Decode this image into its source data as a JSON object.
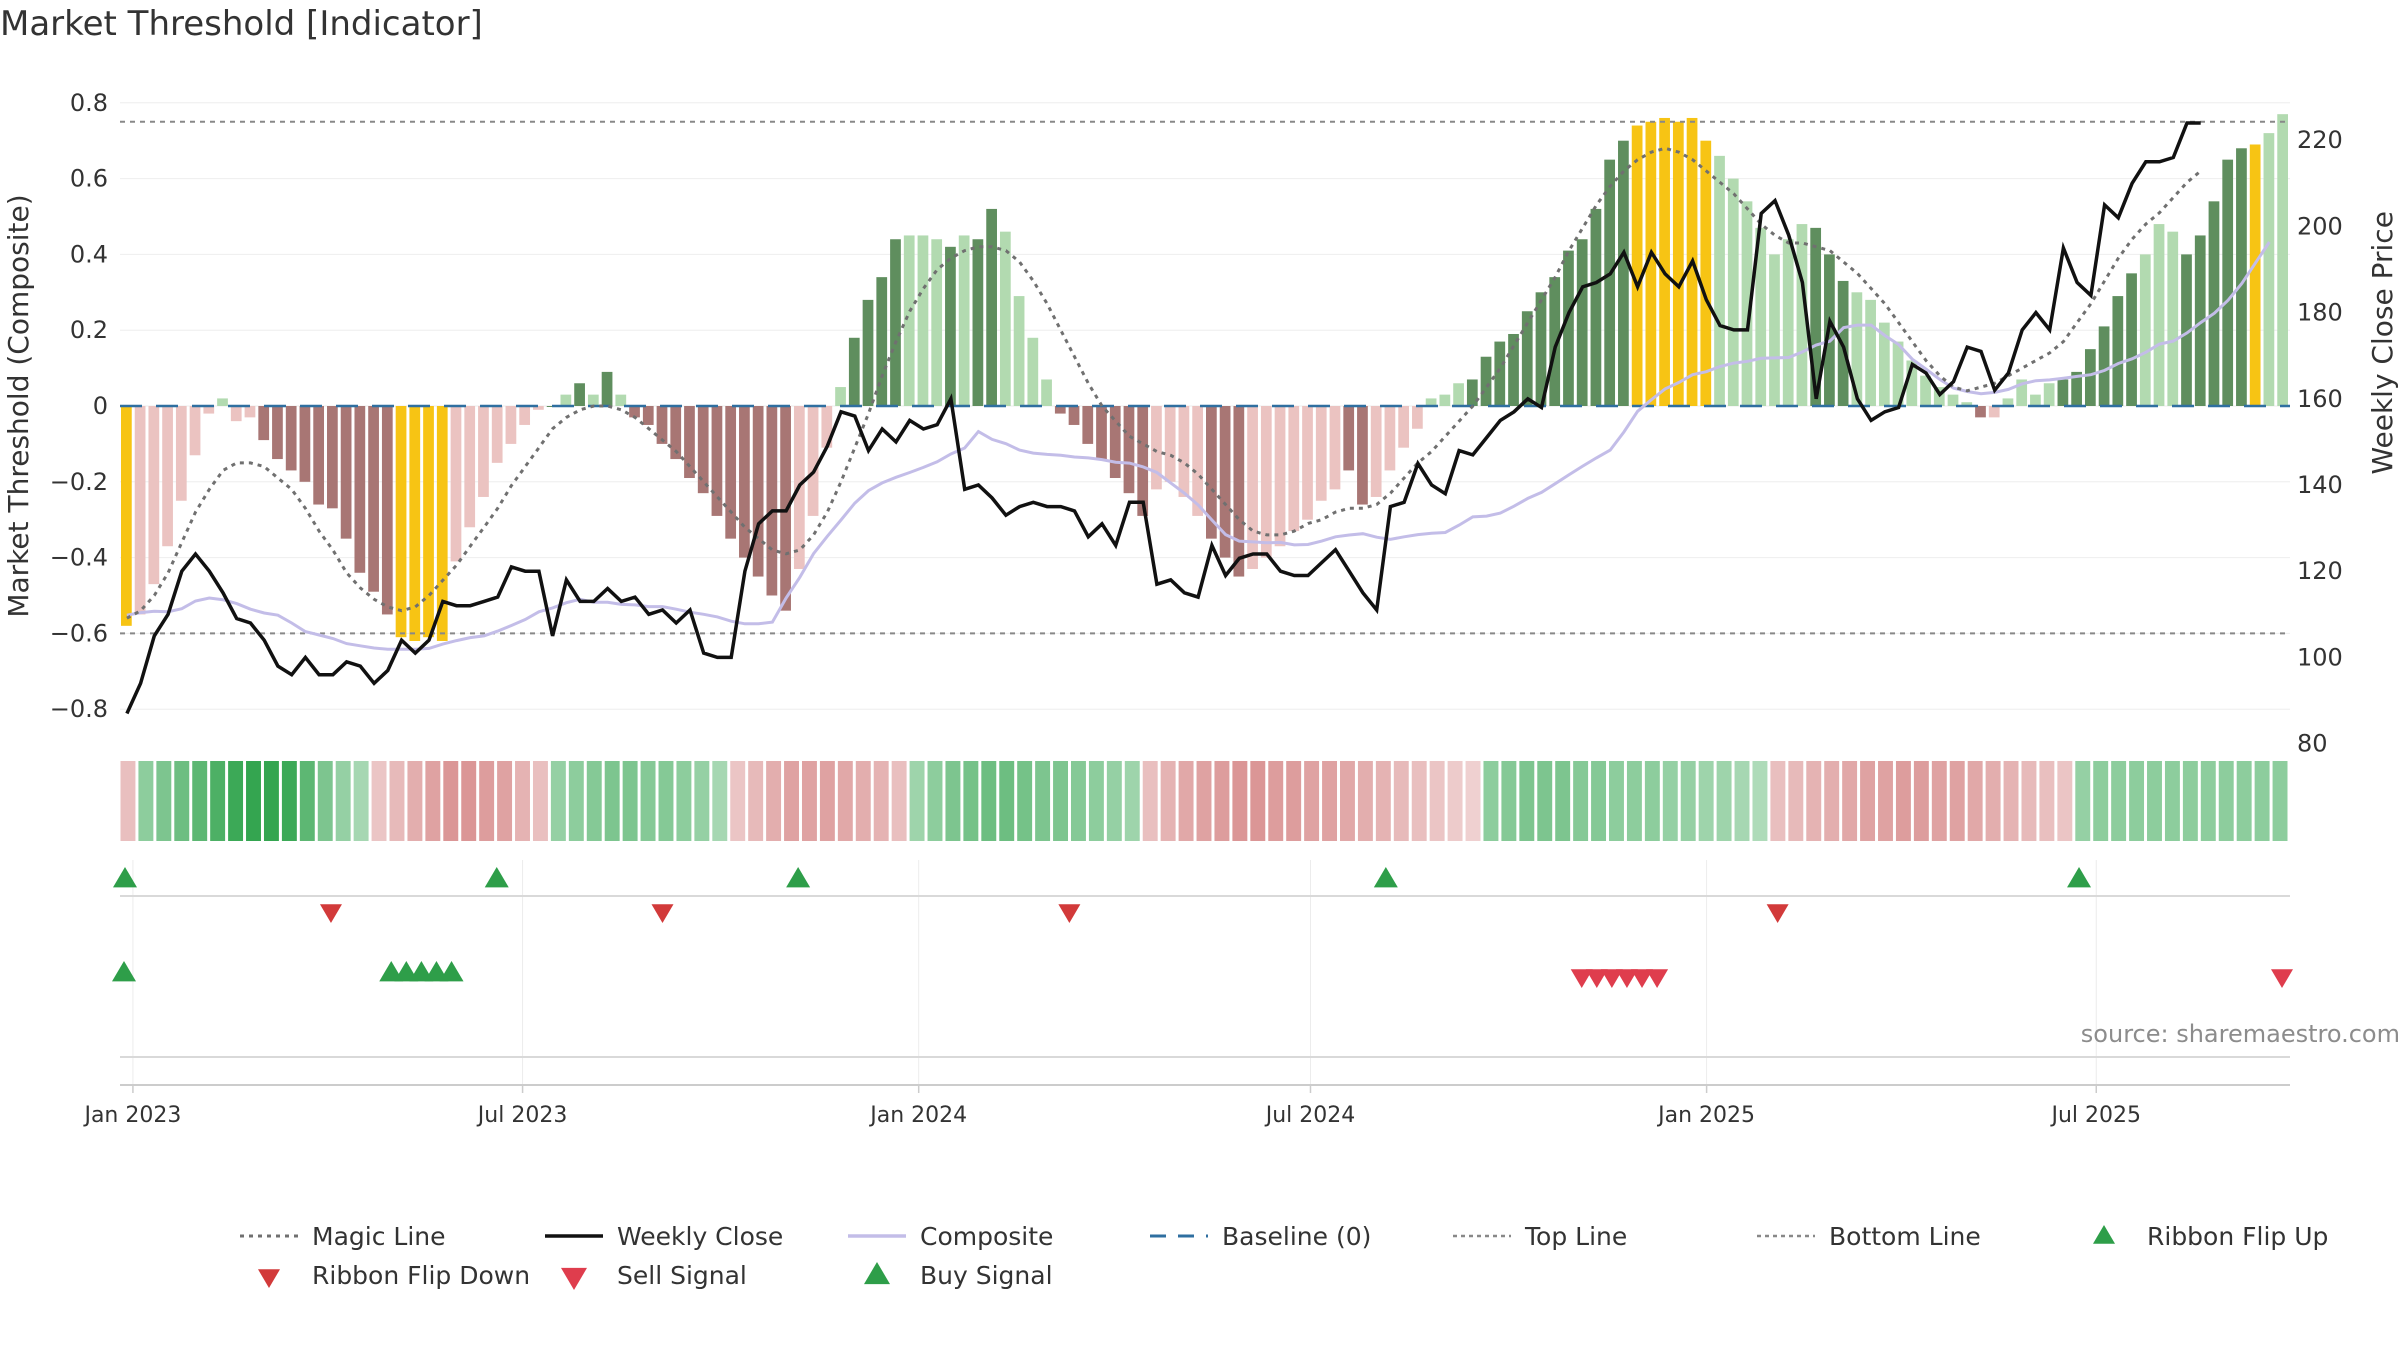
{
  "title": "Market Threshold [Indicator]",
  "source": "source: sharemaestro.com",
  "colors": {
    "magic_line": "#707070",
    "weekly_close": "#111111",
    "composite": "#c3bde8",
    "baseline": "#2f6fa0",
    "guide_lines": "#888888",
    "flip_up": "#2e9e49",
    "flip_down": "#d23a3a",
    "buy": "#2e9e49",
    "sell": "#df3d4d",
    "extreme": "#f7c414",
    "pos_strong": "#5f8e5e",
    "pos_weak": "#b2dab0",
    "neg_strong": "#a87674",
    "neg_weak": "#ebc3c1"
  },
  "chart_data": {
    "type": "bar",
    "title": "Market Threshold [Indicator]",
    "ylabel": "Market Threshold (Composite)",
    "y2label": "Weekly Close Price",
    "ylim": [
      -0.84,
      0.84
    ],
    "y2lim": [
      77,
      230
    ],
    "yticks": [
      0.8,
      0.6,
      0.4,
      0.2,
      0,
      -0.2,
      -0.4,
      -0.6,
      -0.8
    ],
    "yticklabels": [
      "0.8",
      "0.6",
      "0.4",
      "0.2",
      "0",
      "−0.2",
      "−0.4",
      "−0.6",
      "−0.8"
    ],
    "y2ticks": [
      220,
      200,
      180,
      160,
      140,
      120,
      100,
      80
    ],
    "y2ticklabels": [
      "220",
      "200",
      "180",
      "160",
      "140",
      "120",
      "100",
      "80"
    ],
    "x_start": "2022-12-26",
    "x_end": "2025-09-29",
    "xticks": [
      "2023-01-01",
      "2023-07-01",
      "2024-01-01",
      "2024-07-01",
      "2025-01-01",
      "2025-07-01"
    ],
    "xticklabels": [
      "Jan 2023",
      "Jul 2023",
      "Jan 2024",
      "Jul 2024",
      "Jan 2025",
      "Jul 2025"
    ],
    "top_line": 0.75,
    "bottom_line": -0.6,
    "baseline": 0,
    "composite": [
      -0.58,
      -0.55,
      -0.47,
      -0.37,
      -0.25,
      -0.13,
      -0.02,
      0.02,
      -0.04,
      -0.03,
      -0.09,
      -0.14,
      -0.17,
      -0.2,
      -0.26,
      -0.27,
      -0.35,
      -0.44,
      -0.49,
      -0.55,
      -0.61,
      -0.62,
      -0.61,
      -0.62,
      -0.41,
      -0.32,
      -0.24,
      -0.15,
      -0.1,
      -0.05,
      -0.01,
      0,
      0.03,
      0.06,
      0.03,
      0.09,
      0.03,
      -0.03,
      -0.05,
      -0.1,
      -0.14,
      -0.19,
      -0.23,
      -0.29,
      -0.35,
      -0.4,
      -0.45,
      -0.5,
      -0.54,
      -0.43,
      -0.29,
      -0.11,
      0.05,
      0.18,
      0.28,
      0.34,
      0.44,
      0.45,
      0.45,
      0.44,
      0.42,
      0.45,
      0.44,
      0.52,
      0.46,
      0.29,
      0.18,
      0.07,
      -0.02,
      -0.05,
      -0.1,
      -0.14,
      -0.19,
      -0.23,
      -0.29,
      -0.22,
      -0.2,
      -0.24,
      -0.29,
      -0.35,
      -0.4,
      -0.45,
      -0.43,
      -0.4,
      -0.37,
      -0.33,
      -0.3,
      -0.25,
      -0.22,
      -0.17,
      -0.26,
      -0.24,
      -0.17,
      -0.11,
      -0.06,
      0.02,
      0.03,
      0.06,
      0.07,
      0.13,
      0.17,
      0.19,
      0.25,
      0.3,
      0.34,
      0.41,
      0.44,
      0.52,
      0.65,
      0.7,
      0.74,
      0.75,
      0.76,
      0.75,
      0.76,
      0.7,
      0.66,
      0.6,
      0.54,
      0.47,
      0.4,
      0.44,
      0.48,
      0.47,
      0.4,
      0.33,
      0.3,
      0.28,
      0.22,
      0.17,
      0.12,
      0.08,
      0.05,
      0.03,
      0.01,
      -0.03,
      -0.03,
      0.02,
      0.07,
      0.03,
      0.06,
      0.07,
      0.09,
      0.15,
      0.21,
      0.29,
      0.35,
      0.4,
      0.48,
      0.46,
      0.4,
      0.45,
      0.54,
      0.65,
      0.68,
      0.69,
      0.72,
      0.77
    ],
    "intensity": [
      "e",
      "w",
      "w",
      "w",
      "w",
      "w",
      "w",
      "w",
      "w",
      "w",
      "s",
      "s",
      "s",
      "s",
      "s",
      "s",
      "s",
      "s",
      "s",
      "s",
      "e",
      "e",
      "e",
      "e",
      "w",
      "w",
      "w",
      "w",
      "w",
      "w",
      "w",
      "s",
      "w",
      "s",
      "w",
      "s",
      "w",
      "s",
      "s",
      "s",
      "s",
      "s",
      "s",
      "s",
      "s",
      "s",
      "s",
      "s",
      "s",
      "w",
      "w",
      "w",
      "w",
      "s",
      "s",
      "s",
      "s",
      "w",
      "w",
      "w",
      "s",
      "w",
      "s",
      "s",
      "w",
      "w",
      "w",
      "w",
      "s",
      "s",
      "s",
      "s",
      "s",
      "s",
      "s",
      "w",
      "w",
      "w",
      "w",
      "s",
      "s",
      "s",
      "w",
      "w",
      "w",
      "w",
      "w",
      "w",
      "w",
      "s",
      "s",
      "w",
      "w",
      "w",
      "w",
      "w",
      "w",
      "w",
      "s",
      "s",
      "s",
      "s",
      "s",
      "s",
      "s",
      "s",
      "s",
      "s",
      "s",
      "s",
      "e",
      "e",
      "e",
      "e",
      "e",
      "e",
      "w",
      "w",
      "w",
      "w",
      "w",
      "w",
      "w",
      "s",
      "s",
      "s",
      "w",
      "w",
      "w",
      "w",
      "w",
      "w",
      "w",
      "w",
      "w",
      "s",
      "w",
      "w",
      "w",
      "w",
      "w",
      "s",
      "s",
      "s",
      "s",
      "s",
      "s",
      "w",
      "w",
      "w",
      "s",
      "s",
      "s",
      "s",
      "s",
      "e"
    ],
    "magic_line": [
      -0.56,
      -0.54,
      -0.5,
      -0.44,
      -0.36,
      -0.28,
      -0.22,
      -0.17,
      -0.15,
      -0.15,
      -0.16,
      -0.19,
      -0.22,
      -0.27,
      -0.33,
      -0.38,
      -0.44,
      -0.48,
      -0.51,
      -0.53,
      -0.54,
      -0.53,
      -0.5,
      -0.46,
      -0.42,
      -0.37,
      -0.32,
      -0.27,
      -0.21,
      -0.16,
      -0.11,
      -0.06,
      -0.03,
      -0.01,
      0,
      0,
      -0.01,
      -0.03,
      -0.06,
      -0.09,
      -0.12,
      -0.16,
      -0.2,
      -0.24,
      -0.28,
      -0.32,
      -0.35,
      -0.38,
      -0.39,
      -0.38,
      -0.34,
      -0.28,
      -0.2,
      -0.11,
      -0.02,
      0.08,
      0.17,
      0.25,
      0.31,
      0.36,
      0.39,
      0.41,
      0.42,
      0.42,
      0.41,
      0.38,
      0.33,
      0.27,
      0.2,
      0.13,
      0.06,
      0,
      -0.04,
      -0.08,
      -0.1,
      -0.12,
      -0.13,
      -0.15,
      -0.18,
      -0.22,
      -0.26,
      -0.3,
      -0.33,
      -0.34,
      -0.34,
      -0.33,
      -0.31,
      -0.3,
      -0.28,
      -0.27,
      -0.27,
      -0.26,
      -0.23,
      -0.19,
      -0.15,
      -0.12,
      -0.08,
      -0.04,
      0,
      0.05,
      0.1,
      0.16,
      0.22,
      0.28,
      0.34,
      0.41,
      0.47,
      0.53,
      0.58,
      0.62,
      0.65,
      0.67,
      0.68,
      0.67,
      0.65,
      0.62,
      0.59,
      0.56,
      0.52,
      0.48,
      0.45,
      0.43,
      0.43,
      0.42,
      0.41,
      0.38,
      0.35,
      0.31,
      0.27,
      0.22,
      0.17,
      0.12,
      0.08,
      0.05,
      0.04,
      0.05,
      0.06,
      0.08,
      0.1,
      0.12,
      0.14,
      0.17,
      0.22,
      0.27,
      0.33,
      0.39,
      0.44,
      0.48,
      0.51,
      0.55,
      0.59,
      0.62
    ],
    "weekly_close": [
      87,
      94,
      105,
      110,
      120,
      124,
      120,
      115,
      109,
      108,
      104,
      98,
      96,
      100,
      96,
      96,
      99,
      98,
      94,
      97,
      104,
      101,
      104,
      113,
      112,
      112,
      113,
      114,
      121,
      120,
      120,
      105,
      118,
      113,
      113,
      116,
      113,
      114,
      110,
      111,
      108,
      111,
      101,
      100,
      100,
      120,
      131,
      134,
      134,
      140,
      143,
      149,
      157,
      156,
      148,
      153,
      150,
      155,
      153,
      154,
      160,
      139,
      140,
      137,
      133,
      135,
      136,
      135,
      135,
      134,
      128,
      131,
      126,
      136,
      136,
      117,
      118,
      115,
      114,
      126,
      119,
      123,
      124,
      124,
      120,
      119,
      119,
      122,
      125,
      120,
      115,
      111,
      135,
      136,
      145,
      140,
      138,
      148,
      147,
      151,
      155,
      157,
      160,
      158,
      172,
      180,
      186,
      187,
      189,
      194,
      186,
      194,
      189,
      186,
      192,
      183,
      177,
      176,
      176,
      203,
      206,
      198,
      187,
      160,
      178,
      172,
      160,
      155,
      157,
      158,
      168,
      166,
      161,
      164,
      172,
      171,
      162,
      166,
      176,
      180,
      176,
      195,
      187,
      184,
      205,
      202,
      210,
      215,
      215,
      216,
      224,
      224
    ],
    "composite_line": [
      109.8,
      110.4,
      110.7,
      110.6,
      111.3,
      113.1,
      113.8,
      113.4,
      112.5,
      111.2,
      110.3,
      109.8,
      108.0,
      106.0,
      105.2,
      104.4,
      103.2,
      102.7,
      102.2,
      101.9,
      101.9,
      101.9,
      102.1,
      103.1,
      103.9,
      104.6,
      105.0,
      106.1,
      107.4,
      108.8,
      110.6,
      111.5,
      112.7,
      113.5,
      112.8,
      112.8,
      112.3,
      112.2,
      111.8,
      111.8,
      111.2,
      110.5,
      110.0,
      109.4,
      108.4,
      107.8,
      107.8,
      108.2,
      113.8,
      118.6,
      124.1,
      128.1,
      131.9,
      135.8,
      138.7,
      140.5,
      141.8,
      142.9,
      144.1,
      145.4,
      147.2,
      148.6,
      152.4,
      150.6,
      149.6,
      148.1,
      147.4,
      147.1,
      146.9,
      146.5,
      146.3,
      145.9,
      145.3,
      145.1,
      144.2,
      142.9,
      140.5,
      138.1,
      135.4,
      131.9,
      128.5,
      127.0,
      126.8,
      126.6,
      126.7,
      126.1,
      126.2,
      127.0,
      128.0,
      128.4,
      128.7,
      127.9,
      127.4,
      128.0,
      128.5,
      128.8,
      129.0,
      130.7,
      132.6,
      132.8,
      133.5,
      135.1,
      136.9,
      138.3,
      140.3,
      142.4,
      144.4,
      146.3,
      148.1,
      152.3,
      157.1,
      159.8,
      162.3,
      163.8,
      165.6,
      166.3,
      167.5,
      168.3,
      168.7,
      169.4,
      169.5,
      169.6,
      170.9,
      172.5,
      173.4,
      176.5,
      177.1,
      177.1,
      174.7,
      172.6,
      169.2,
      166.9,
      164.5,
      162.5,
      161.7,
      161.2,
      161.5,
      162.2,
      163.5,
      164.2,
      164.4,
      164.8,
      165.2,
      165.6,
      166.6,
      168.2,
      169.3,
      170.8,
      172.7,
      173.4,
      175.3,
      177.7,
      179.9,
      182.9,
      186.8,
      191.6,
      196.4
    ],
    "ribbon": [
      -0.3,
      0.45,
      0.55,
      0.65,
      0.75,
      0.85,
      0.95,
      1,
      1,
      0.95,
      0.75,
      0.55,
      0.4,
      0.3,
      -0.25,
      -0.35,
      -0.45,
      -0.55,
      -0.65,
      -0.65,
      -0.6,
      -0.55,
      -0.4,
      -0.3,
      0.4,
      0.45,
      0.5,
      0.55,
      0.55,
      0.5,
      0.5,
      0.45,
      0.4,
      0.3,
      -0.25,
      -0.35,
      -0.45,
      -0.55,
      -0.55,
      -0.55,
      -0.5,
      -0.45,
      -0.4,
      -0.3,
      0.35,
      0.45,
      0.55,
      0.6,
      0.65,
      0.65,
      0.6,
      0.55,
      0.55,
      0.5,
      0.45,
      0.4,
      0.35,
      -0.3,
      -0.4,
      -0.5,
      -0.55,
      -0.6,
      -0.65,
      -0.65,
      -0.6,
      -0.6,
      -0.55,
      -0.55,
      -0.5,
      -0.45,
      -0.4,
      -0.35,
      -0.3,
      -0.25,
      -0.2,
      -0.15,
      0.45,
      0.5,
      0.55,
      0.55,
      0.55,
      0.5,
      0.5,
      0.45,
      0.45,
      0.45,
      0.4,
      0.4,
      0.35,
      0.35,
      0.3,
      0.25,
      -0.3,
      -0.35,
      -0.4,
      -0.45,
      -0.5,
      -0.55,
      -0.55,
      -0.6,
      -0.6,
      -0.55,
      -0.55,
      -0.5,
      -0.45,
      -0.4,
      -0.35,
      -0.3,
      -0.25,
      0.4,
      0.45,
      0.45,
      0.45,
      0.45,
      0.45,
      0.45,
      0.45,
      0.45,
      0.45,
      0.45,
      0.45
    ],
    "ribbon_flip_up": [
      "2022-12-26",
      "2023-06-19",
      "2023-11-06",
      "2024-08-05",
      "2025-06-23"
    ],
    "ribbon_flip_down": [
      "2023-04-03",
      "2023-09-04",
      "2024-03-11",
      "2025-02-03"
    ],
    "buy_signal": [
      "2022-12-19",
      "2023-05-01",
      "2023-05-08",
      "2023-05-15",
      "2023-05-22",
      "2023-05-29"
    ],
    "sell_signal": [
      "2024-11-04",
      "2024-11-11",
      "2024-11-18",
      "2024-11-25",
      "2024-12-02",
      "2024-12-09",
      "2025-09-29"
    ],
    "legend": [
      {
        "label": "Magic Line",
        "kind": "magic"
      },
      {
        "label": "Weekly Close",
        "kind": "close"
      },
      {
        "label": "Composite",
        "kind": "composite"
      },
      {
        "label": "Baseline (0)",
        "kind": "baseline"
      },
      {
        "label": "Top Line",
        "kind": "guide"
      },
      {
        "label": "Bottom Line",
        "kind": "guide"
      },
      {
        "label": "Ribbon Flip Up",
        "kind": "flip_up"
      },
      {
        "label": "Ribbon Flip Down",
        "kind": "flip_down"
      },
      {
        "label": "Sell Signal",
        "kind": "sell"
      },
      {
        "label": "Buy Signal",
        "kind": "buy"
      }
    ]
  }
}
